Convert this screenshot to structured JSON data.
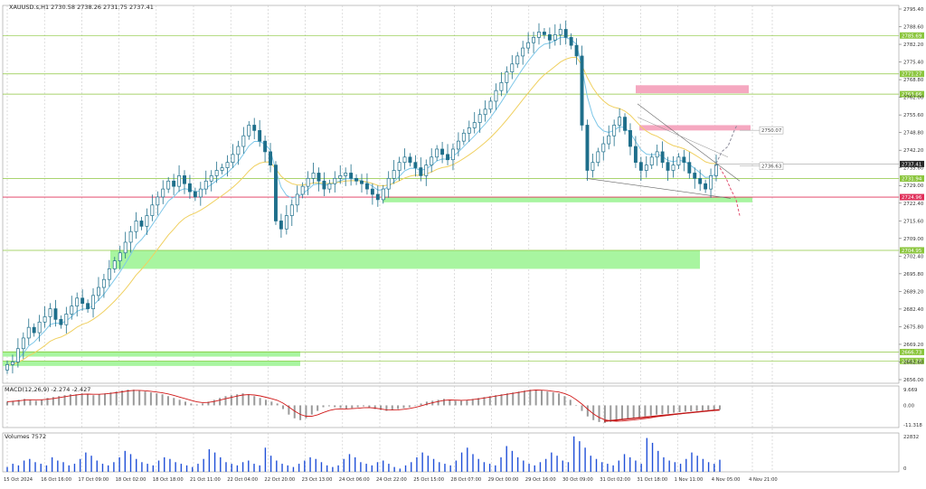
{
  "header": {
    "symbol_line": "XAUUSD.s,H1  2730.58 2738.26 2731.75 2737.41",
    "macd_label": "MACD(12,26,9) -2.274 -2.427",
    "volume_label": "Volumes 7572"
  },
  "colors": {
    "background": "#ffffff",
    "candle": "#1f6f8b",
    "ema_fast": "#7ec7e8",
    "ema_slow": "#f0d060",
    "level_line": "#8cc63f",
    "level_label_bg": "#8cc63f",
    "support_zone": "#a8f5a0",
    "resistance_zone": "#f5a8c0",
    "current_price_label": "#2a2a2a",
    "red_level": "#e0305a",
    "macd_hist": "#9a9a9a",
    "macd_signal": "#d01818",
    "volume_bar": "#1f4fd8",
    "forecast_red": "#e05070",
    "grid": "#c8c8c8"
  },
  "chart_data": [
    {
      "type": "line",
      "title": "XAUUSD.s,H1",
      "ylim": [
        2655.0,
        2790.0
      ],
      "y_ticks": [
        "2795.40",
        "2788.60",
        "2782.20",
        "2775.40",
        "2768.80",
        "2762.00",
        "2755.60",
        "2748.80",
        "2742.20",
        "2735.60",
        "2729.00",
        "2722.40",
        "2715.60",
        "2709.00",
        "2702.40",
        "2695.80",
        "2689.20",
        "2682.40",
        "2675.80",
        "2669.20",
        "2662.60",
        "2656.00"
      ],
      "x_ticks": [
        "15 Oct 2024",
        "16 Oct 16:00",
        "17 Oct 09:00",
        "18 Oct 02:00",
        "18 Oct 18:00",
        "21 Oct 11:00",
        "22 Oct 04:00",
        "22 Oct 20:00",
        "23 Oct 13:00",
        "24 Oct 06:00",
        "24 Oct 22:00",
        "25 Oct 15:00",
        "28 Oct 07:00",
        "29 Oct 00:00",
        "29 Oct 16:00",
        "30 Oct 09:00",
        "31 Oct 02:00",
        "31 Oct 18:00",
        "1 Nov 11:00",
        "4 Nov 05:00",
        "4 Nov 21:00"
      ],
      "series": [
        {
          "values": [
            2662,
            2663,
            2668,
            2672,
            2676,
            2674,
            2678,
            2680,
            2683,
            2679,
            2677,
            2681,
            2684,
            2687,
            2685,
            2683,
            2688,
            2691,
            2694,
            2698,
            2701,
            2704,
            2708,
            2712,
            2716,
            2714,
            2718,
            2722,
            2725,
            2728,
            2731,
            2729,
            2733,
            2730,
            2727,
            2725,
            2728,
            2731,
            2733,
            2735,
            2736,
            2738,
            2741,
            2744,
            2748,
            2752,
            2750,
            2746,
            2742,
            2737,
            2716,
            2713,
            2718,
            2722,
            2726,
            2729,
            2732,
            2734,
            2731,
            2728,
            2730,
            2732,
            2733,
            2734,
            2732,
            2731,
            2730,
            2728,
            2726,
            2724,
            2728,
            2732,
            2735,
            2738,
            2740,
            2738,
            2736,
            2733,
            2737,
            2740,
            2743,
            2741,
            2739,
            2743,
            2746,
            2749,
            2751,
            2753,
            2756,
            2758,
            2761,
            2765,
            2768,
            2772,
            2775,
            2778,
            2781,
            2783,
            2785,
            2787,
            2786,
            2784,
            2786,
            2788,
            2785,
            2782,
            2778,
            2752,
            2735,
            2738,
            2742,
            2745,
            2748,
            2752,
            2755,
            2750,
            2744,
            2738,
            2735,
            2737,
            2740,
            2742,
            2738,
            2735,
            2737,
            2740,
            2738,
            2734,
            2732,
            2730,
            2728,
            2733,
            2737
          ]
        }
      ],
      "levels": [
        {
          "label": "2785.69",
          "value": 2785.69
        },
        {
          "label": "2771.27",
          "value": 2771.27
        },
        {
          "label": "2763.66",
          "value": 2763.66
        },
        {
          "label": "2731.94",
          "value": 2731.94
        },
        {
          "label": "2724.96",
          "value": 2724.96
        },
        {
          "label": "2704.95",
          "value": 2704.95
        },
        {
          "label": "2666.73",
          "value": 2666.73
        },
        {
          "label": "2663.38",
          "value": 2663.38
        }
      ],
      "current_price": {
        "label": "2737.41",
        "value": 2737.41
      },
      "forecast_labels": [
        {
          "label": "2750.07",
          "value": 2750.07
        },
        {
          "label": "2736.63",
          "value": 2736.63
        }
      ],
      "zones": [
        {
          "kind": "support",
          "from": 2723.0,
          "to": 2725.0
        },
        {
          "kind": "support",
          "from": 2698.0,
          "to": 2705.0
        },
        {
          "kind": "support",
          "from": 2665.0,
          "to": 2667.0
        },
        {
          "kind": "support",
          "from": 2661.5,
          "to": 2663.5
        },
        {
          "kind": "resistance",
          "from": 2764.0,
          "to": 2767.0
        },
        {
          "kind": "resistance",
          "from": 2750.0,
          "to": 2752.0
        }
      ]
    },
    {
      "type": "bar",
      "title": "MACD(12,26,9) -2.274 -2.427",
      "y_ticks": [
        "9.669",
        "0.00",
        "-11.318"
      ],
      "ylim": [
        -12.0,
        10.5
      ],
      "values": [
        2,
        2.5,
        3,
        3.5,
        3,
        2.5,
        3,
        4,
        4.5,
        5,
        5.5,
        6,
        6,
        6.5,
        6,
        5.5,
        6,
        6.5,
        7,
        7.5,
        8,
        8.5,
        8.5,
        8,
        7.5,
        7,
        6.5,
        6,
        5,
        4,
        3,
        2,
        1,
        0.5,
        1,
        2,
        3,
        4,
        5,
        5.5,
        6,
        6.5,
        6,
        5,
        4,
        3,
        2,
        1,
        -2,
        -5,
        -7,
        -8,
        -7,
        -5,
        -3,
        -1,
        -0.5,
        -1,
        -1.5,
        -2,
        -1.5,
        -1,
        -0.5,
        -1,
        -2,
        -2.5,
        -3,
        -2.5,
        -2,
        -1.5,
        -1,
        0,
        1,
        2,
        2.5,
        3,
        3.5,
        3,
        2.5,
        2.5,
        3,
        3.5,
        4,
        4.5,
        5,
        5.5,
        6,
        6.5,
        7,
        7.5,
        8,
        8.5,
        8.5,
        8,
        7.5,
        7,
        6.5,
        5,
        3,
        0,
        -3,
        -6,
        -8,
        -9,
        -9.5,
        -9,
        -8.5,
        -8,
        -7.5,
        -7,
        -6.5,
        -6,
        -5.5,
        -5,
        -4.8,
        -4.5,
        -4,
        -3.7,
        -3.4,
        -3.2,
        -3,
        -2.8,
        -2.6,
        -2.5,
        -2.4
      ],
      "signal": [
        2,
        2.2,
        2.5,
        2.8,
        3,
        3,
        3,
        3.3,
        3.7,
        4.2,
        4.7,
        5.2,
        5.6,
        6,
        6.1,
        6,
        6,
        6.2,
        6.5,
        6.9,
        7.3,
        7.8,
        8.1,
        8.1,
        7.9,
        7.6,
        7.2,
        6.8,
        6.2,
        5.4,
        4.5,
        3.6,
        2.7,
        1.9,
        1.5,
        1.6,
        2.1,
        2.8,
        3.6,
        4.3,
        5,
        5.6,
        5.8,
        5.6,
        5.1,
        4.4,
        3.6,
        2.7,
        1.2,
        -0.9,
        -3.1,
        -4.9,
        -5.9,
        -5.9,
        -5.1,
        -3.9,
        -2.8,
        -2.1,
        -1.9,
        -1.9,
        -1.8,
        -1.6,
        -1.3,
        -1.2,
        -1.5,
        -1.9,
        -2.4,
        -2.5,
        -2.4,
        -2.1,
        -1.7,
        -1.1,
        -0.3,
        0.6,
        1.4,
        2.1,
        2.7,
        2.9,
        2.8,
        2.7,
        2.8,
        3.1,
        3.5,
        4,
        4.5,
        5,
        5.5,
        6,
        6.5,
        7,
        7.5,
        8,
        8.3,
        8.2,
        8,
        7.6,
        7.2,
        6.4,
        5.1,
        3.1,
        0.7,
        -2,
        -4.6,
        -6.5,
        -7.8,
        -8.4,
        -8.6,
        -8.5,
        -8.2,
        -7.9,
        -7.5,
        -7.1,
        -6.7,
        -6.2,
        -5.8,
        -5.4,
        -5,
        -4.6,
        -4.2,
        -3.9,
        -3.6,
        -3.3,
        -3,
        -2.8,
        -2.6
      ]
    },
    {
      "type": "bar",
      "title": "Volumes 7572",
      "y_ticks": [
        "22832",
        "0"
      ],
      "ylim": [
        0,
        23000
      ],
      "values": [
        3000,
        5000,
        4000,
        7000,
        8000,
        6000,
        5000,
        4000,
        9000,
        7000,
        6000,
        4000,
        5000,
        8000,
        12000,
        10000,
        7000,
        5000,
        4000,
        6000,
        9000,
        13000,
        11000,
        8000,
        6000,
        5000,
        4000,
        7000,
        9000,
        8000,
        6000,
        5000,
        4000,
        3000,
        5000,
        8000,
        14000,
        12000,
        9000,
        6000,
        5000,
        4000,
        6000,
        7000,
        5000,
        4000,
        15000,
        10000,
        7000,
        5000,
        4000,
        3000,
        5000,
        7000,
        9000,
        8000,
        6000,
        4000,
        3000,
        4000,
        8000,
        11000,
        9000,
        6000,
        5000,
        4000,
        6000,
        7000,
        5000,
        3000,
        2000,
        4000,
        6000,
        9000,
        12000,
        10000,
        8000,
        6000,
        5000,
        4000,
        7000,
        12000,
        15000,
        11000,
        8000,
        6000,
        5000,
        4000,
        9000,
        16000,
        13000,
        9000,
        7000,
        5000,
        4000,
        6000,
        8000,
        12000,
        10000,
        7000,
        6000,
        22000,
        19000,
        15000,
        10000,
        8000,
        6000,
        5000,
        4000,
        7000,
        11000,
        9000,
        7000,
        5000,
        21000,
        18000,
        13000,
        9000,
        7000,
        6000,
        5000,
        8000,
        12000,
        10000,
        8000,
        6000,
        5000,
        7500
      ]
    }
  ]
}
